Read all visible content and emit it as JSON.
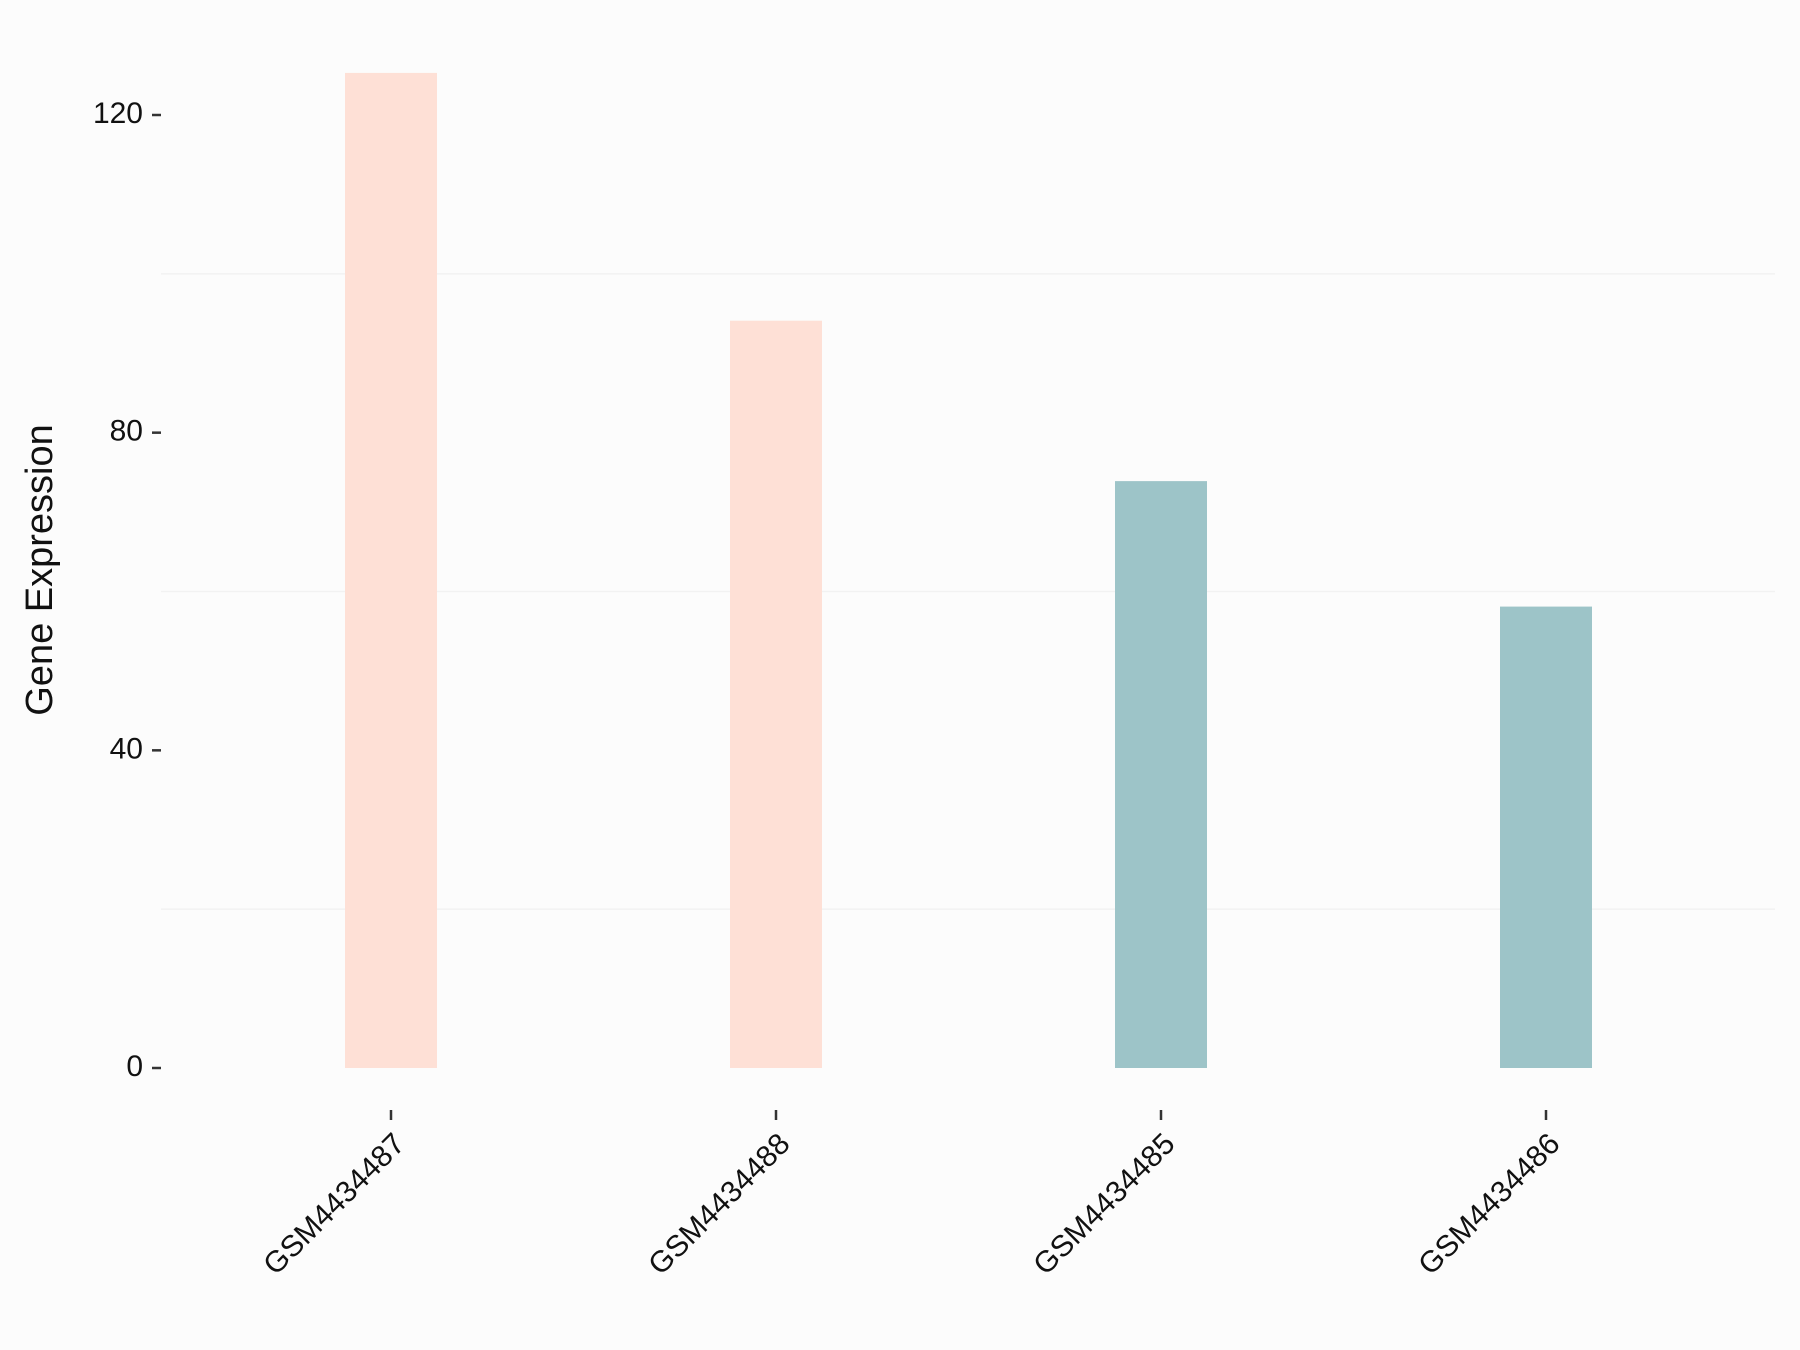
{
  "chart_data": {
    "type": "bar",
    "y_label": "Gene Expression",
    "categories": [
      "GSM4434487",
      "GSM4434488",
      "GSM4434485",
      "GSM4434486"
    ],
    "values": [
      125.3,
      94.1,
      73.9,
      58.1
    ],
    "colors": [
      "#fee0d6",
      "#fee0d6",
      "#9dc4c8",
      "#9dc4c8"
    ],
    "ylim": [
      0,
      126
    ],
    "yticks": [
      0,
      40,
      80,
      120
    ],
    "minor_yticks": [
      20,
      60,
      100
    ],
    "grid": true
  }
}
